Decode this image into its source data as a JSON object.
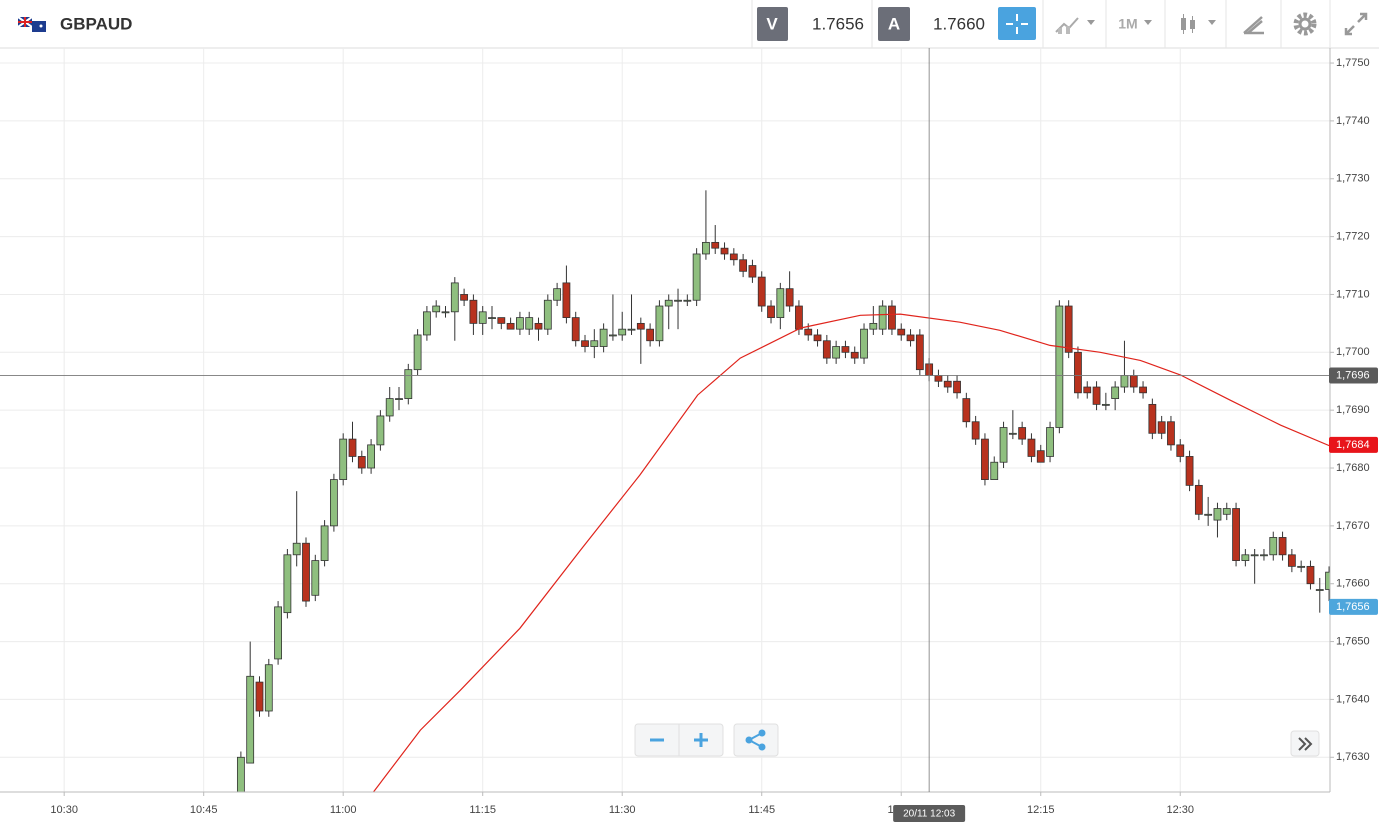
{
  "toolbar": {
    "symbol": "GBPAUD",
    "bid_label": "V",
    "bid": "1.7656",
    "ask_label": "A",
    "ask": "1.7660",
    "timeframe": "1M"
  },
  "chart_data": {
    "type": "candlestick",
    "xlim": [
      623.1,
      766.1
    ],
    "xticks": [
      {
        "value": 630,
        "label": "10:30"
      },
      {
        "value": 645,
        "label": "10:45"
      },
      {
        "value": 660,
        "label": "11:00"
      },
      {
        "value": 675,
        "label": "11:15"
      },
      {
        "value": 690,
        "label": "11:30"
      },
      {
        "value": 705,
        "label": "11:45"
      },
      {
        "value": 720,
        "label": "12:00"
      },
      {
        "value": 735,
        "label": "12:15"
      },
      {
        "value": 750,
        "label": "12:30"
      }
    ],
    "ylim": [
      1.7624,
      1.77526
    ],
    "yticks": [
      {
        "value": 1.763,
        "label": "1,7630"
      },
      {
        "value": 1.764,
        "label": "1,7640"
      },
      {
        "value": 1.765,
        "label": "1,7650"
      },
      {
        "value": 1.766,
        "label": "1,7660"
      },
      {
        "value": 1.767,
        "label": "1,7670"
      },
      {
        "value": 1.768,
        "label": "1,7680"
      },
      {
        "value": 1.769,
        "label": "1,7690"
      },
      {
        "value": 1.77,
        "label": "1,7700"
      },
      {
        "value": 1.771,
        "label": "1,7710"
      },
      {
        "value": 1.772,
        "label": "1,7720"
      },
      {
        "value": 1.773,
        "label": "1,7730"
      },
      {
        "value": 1.774,
        "label": "1,7740"
      },
      {
        "value": 1.775,
        "label": "1,7750"
      }
    ],
    "grid": true,
    "up_color": "#8fbf7f",
    "down_color": "#b8321e",
    "x": [
      649,
      650,
      651,
      652,
      653,
      654,
      655,
      656,
      657,
      658,
      659,
      660,
      661,
      662,
      663,
      664,
      665,
      666,
      667,
      668,
      669,
      670,
      671,
      672,
      673,
      674,
      675,
      676,
      677,
      678,
      679,
      680,
      681,
      682,
      683,
      684,
      685,
      686,
      687,
      688,
      689,
      690,
      691,
      692,
      693,
      694,
      695,
      696,
      697,
      698,
      699,
      700,
      701,
      702,
      703,
      704,
      705,
      706,
      707,
      708,
      709,
      710,
      711,
      712,
      713,
      714,
      715,
      716,
      717,
      718,
      719,
      720,
      721,
      722,
      723,
      724,
      725,
      726,
      727,
      728,
      729,
      730,
      731,
      732,
      733,
      734,
      735,
      736,
      737,
      738,
      739,
      740,
      741,
      742,
      743,
      744,
      745,
      746,
      747,
      748,
      749,
      750,
      751,
      752,
      753,
      754,
      755,
      756,
      757,
      758,
      759,
      760,
      761,
      762,
      763,
      764,
      765,
      766
    ],
    "open": [
      1.7624,
      1.7629,
      1.7643,
      1.7638,
      1.7647,
      1.7655,
      1.7665,
      1.7667,
      1.7658,
      1.7664,
      1.767,
      1.7678,
      1.7685,
      1.7682,
      1.768,
      1.7684,
      1.7689,
      1.7692,
      1.7692,
      1.7697,
      1.7703,
      1.7707,
      1.7707,
      1.7707,
      1.771,
      1.7709,
      1.7705,
      1.7706,
      1.7706,
      1.7705,
      1.7704,
      1.7704,
      1.7705,
      1.7704,
      1.7709,
      1.7712,
      1.7706,
      1.7702,
      1.7701,
      1.7701,
      1.7703,
      1.7703,
      1.7704,
      1.7705,
      1.7704,
      1.7702,
      1.7708,
      1.7709,
      1.7709,
      1.7709,
      1.7717,
      1.7719,
      1.7718,
      1.7717,
      1.7716,
      1.7715,
      1.7713,
      1.7708,
      1.7706,
      1.7711,
      1.7708,
      1.7704,
      1.7703,
      1.7702,
      1.7699,
      1.7701,
      1.77,
      1.7699,
      1.7704,
      1.7704,
      1.7708,
      1.7704,
      1.7703,
      1.7703,
      1.7698,
      1.7696,
      1.7695,
      1.7695,
      1.7692,
      1.7688,
      1.7685,
      1.7678,
      1.7681,
      1.7686,
      1.7687,
      1.7685,
      1.7683,
      1.7682,
      1.7687,
      1.7708,
      1.77,
      1.7694,
      1.7694,
      1.7691,
      1.7692,
      1.7694,
      1.7696,
      1.7694,
      1.7691,
      1.7688,
      1.7688,
      1.7684,
      1.7682,
      1.7677,
      1.7672,
      1.7671,
      1.7672,
      1.7673,
      1.7664,
      1.7665,
      1.7665,
      1.7665,
      1.7668,
      1.7665,
      1.7663,
      1.7663,
      1.7659,
      1.7659
    ],
    "high": [
      1.7631,
      1.765,
      1.7644,
      1.7647,
      1.7657,
      1.7666,
      1.7676,
      1.7668,
      1.7665,
      1.7671,
      1.7679,
      1.7686,
      1.7688,
      1.7683,
      1.7685,
      1.769,
      1.7694,
      1.7694,
      1.7698,
      1.7704,
      1.7708,
      1.7709,
      1.7708,
      1.7713,
      1.7711,
      1.771,
      1.7708,
      1.7708,
      1.7706,
      1.7706,
      1.7707,
      1.7707,
      1.7706,
      1.771,
      1.7712,
      1.7715,
      1.7707,
      1.7703,
      1.7704,
      1.7705,
      1.771,
      1.7707,
      1.771,
      1.7706,
      1.7705,
      1.7709,
      1.771,
      1.7711,
      1.771,
      1.7718,
      1.7728,
      1.7722,
      1.7719,
      1.7718,
      1.7717,
      1.7716,
      1.7714,
      1.7709,
      1.7712,
      1.7714,
      1.7709,
      1.7705,
      1.7704,
      1.7703,
      1.7702,
      1.7702,
      1.7701,
      1.7705,
      1.7708,
      1.7709,
      1.7709,
      1.7705,
      1.7704,
      1.7704,
      1.7699,
      1.7697,
      1.7696,
      1.7696,
      1.7693,
      1.7689,
      1.7686,
      1.7682,
      1.7688,
      1.769,
      1.7688,
      1.7686,
      1.7684,
      1.7688,
      1.7709,
      1.7709,
      1.7701,
      1.7695,
      1.7695,
      1.7693,
      1.7695,
      1.7702,
      1.7697,
      1.7695,
      1.7692,
      1.7689,
      1.7689,
      1.7685,
      1.7683,
      1.7678,
      1.7675,
      1.7674,
      1.7674,
      1.7674,
      1.7666,
      1.7666,
      1.7666,
      1.7669,
      1.7669,
      1.7666,
      1.7664,
      1.7664,
      1.7661,
      1.7663
    ],
    "low": [
      1.7624,
      1.7629,
      1.7637,
      1.7637,
      1.7646,
      1.7654,
      1.7663,
      1.7656,
      1.7657,
      1.7663,
      1.7669,
      1.7677,
      1.7681,
      1.7679,
      1.7679,
      1.7683,
      1.7688,
      1.769,
      1.7691,
      1.7696,
      1.7702,
      1.7706,
      1.7706,
      1.7702,
      1.7708,
      1.7703,
      1.7703,
      1.7704,
      1.7704,
      1.7704,
      1.7703,
      1.7703,
      1.7702,
      1.7703,
      1.7708,
      1.7705,
      1.7701,
      1.77,
      1.7699,
      1.77,
      1.7702,
      1.7702,
      1.7703,
      1.7698,
      1.7701,
      1.7701,
      1.7704,
      1.7704,
      1.7708,
      1.7708,
      1.7716,
      1.7717,
      1.7716,
      1.7715,
      1.7713,
      1.7712,
      1.7707,
      1.7705,
      1.7704,
      1.7707,
      1.7703,
      1.7702,
      1.7701,
      1.7698,
      1.7698,
      1.7699,
      1.7698,
      1.7698,
      1.7703,
      1.7703,
      1.7703,
      1.7702,
      1.7701,
      1.7696,
      1.7695,
      1.7694,
      1.7693,
      1.7692,
      1.7687,
      1.7684,
      1.7677,
      1.7678,
      1.768,
      1.7685,
      1.7684,
      1.7681,
      1.7681,
      1.7681,
      1.7686,
      1.7699,
      1.7692,
      1.7692,
      1.769,
      1.769,
      1.769,
      1.7693,
      1.7693,
      1.7692,
      1.7685,
      1.7685,
      1.7683,
      1.7681,
      1.7676,
      1.7671,
      1.767,
      1.7668,
      1.7671,
      1.7663,
      1.7663,
      1.766,
      1.7664,
      1.7664,
      1.7664,
      1.7662,
      1.7662,
      1.7659,
      1.7655,
      1.7657
    ],
    "close": [
      1.763,
      1.7644,
      1.7638,
      1.7646,
      1.7656,
      1.7665,
      1.7667,
      1.7657,
      1.7664,
      1.767,
      1.7678,
      1.7685,
      1.7682,
      1.768,
      1.7684,
      1.7689,
      1.7692,
      1.7692,
      1.7697,
      1.7703,
      1.7707,
      1.7708,
      1.7707,
      1.7712,
      1.7709,
      1.7705,
      1.7707,
      1.7706,
      1.7705,
      1.7704,
      1.7706,
      1.7706,
      1.7704,
      1.7709,
      1.7711,
      1.7706,
      1.7702,
      1.7701,
      1.7702,
      1.7704,
      1.7703,
      1.7704,
      1.7704,
      1.7704,
      1.7702,
      1.7708,
      1.7709,
      1.7709,
      1.7709,
      1.7717,
      1.7719,
      1.7718,
      1.7717,
      1.7716,
      1.7714,
      1.7713,
      1.7708,
      1.7706,
      1.7711,
      1.7708,
      1.7704,
      1.7703,
      1.7702,
      1.7699,
      1.7701,
      1.77,
      1.7699,
      1.7704,
      1.7705,
      1.7708,
      1.7704,
      1.7703,
      1.7702,
      1.7697,
      1.7696,
      1.7695,
      1.7694,
      1.7693,
      1.7688,
      1.7685,
      1.7678,
      1.7681,
      1.7687,
      1.7686,
      1.7685,
      1.7682,
      1.7681,
      1.7687,
      1.7708,
      1.77,
      1.7693,
      1.7693,
      1.7691,
      1.7691,
      1.7694,
      1.7696,
      1.7694,
      1.7693,
      1.7686,
      1.7686,
      1.7684,
      1.7682,
      1.7677,
      1.7672,
      1.7672,
      1.7673,
      1.7673,
      1.7664,
      1.7665,
      1.7665,
      1.7665,
      1.7668,
      1.7665,
      1.7663,
      1.7663,
      1.766,
      1.7659,
      1.7662
    ],
    "moving_average": {
      "color": "#e0241c",
      "x": [
        663.2,
        668.3,
        672.6,
        679.0,
        685.5,
        691.9,
        698.1,
        702.7,
        709.2,
        715.6,
        719.9,
        726.3,
        730.6,
        736.0,
        741.4,
        745.7,
        750.0,
        755.4,
        760.8,
        766.1
      ],
      "values": [
        1.76239,
        1.76347,
        1.76416,
        1.76523,
        1.76658,
        1.76788,
        1.76926,
        1.7699,
        1.77042,
        1.77064,
        1.77066,
        1.77052,
        1.77038,
        1.77012,
        1.77,
        1.76986,
        1.76961,
        1.76917,
        1.76874,
        1.76838
      ]
    },
    "price_tags": [
      {
        "value": 1.7684,
        "label": "1,7684",
        "color": "#e8141a"
      },
      {
        "value": 1.7656,
        "label": "1,7656",
        "color": "#4ea6dc"
      }
    ],
    "crosshair": {
      "x": 723,
      "x_label": "20/11 12:03",
      "y": 1.7696,
      "y_label": "1,7696",
      "color": "#5b5b5b"
    }
  }
}
